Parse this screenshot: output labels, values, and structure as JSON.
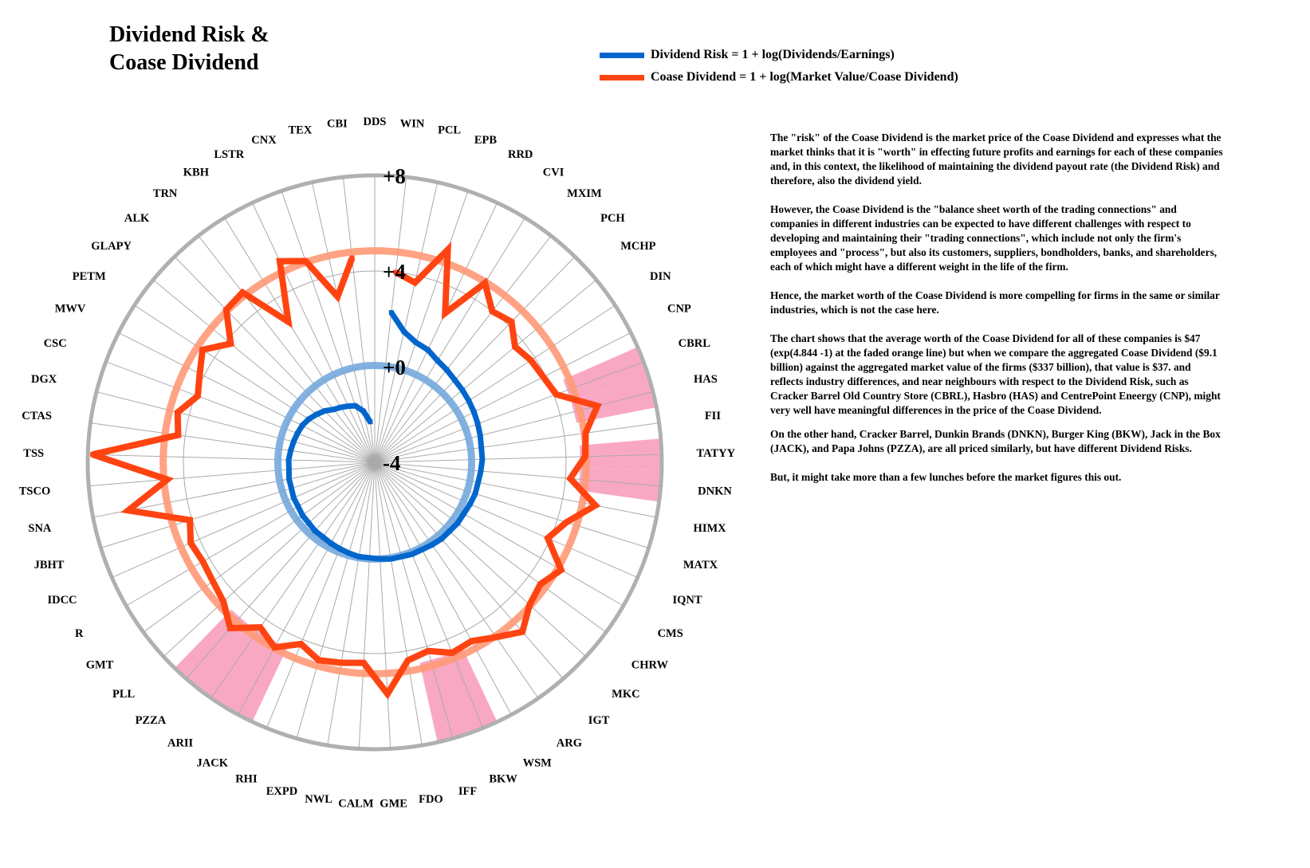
{
  "title": {
    "line1": "Dividend Risk &",
    "line2": "Coase Dividend"
  },
  "legend": [
    {
      "label": "Dividend Risk = 1 + log(Dividends/Earnings)",
      "color": "#0066CC"
    },
    {
      "label": "Coase Dividend = 1 + log(Market Value/Coase Dividend)",
      "color": "#FF4411"
    }
  ],
  "notes": [
    "The \"risk\" of the Coase Dividend is the market price of the Coase Dividend and expresses what the market thinks that it is \"worth\" in effecting future profits and earnings for each of these companies and, in this context, the likelihood of maintaining the dividend payout rate (the Dividend Risk) and therefore, also the dividend yield.",
    "However, the Coase Dividend is the \"balance sheet worth of the trading connections\" and companies in different industries can be expected to have different challenges with respect to developing and maintaining their \"trading connections\", which include not only the firm's employees and \"process\", but also its customers, suppliers, bondholders, banks, and shareholders, each of which might have a different weight in the life of the firm.",
    "Hence, the market worth of the Coase Dividend is more compelling for firms in the same or similar industries, which is not the case here.",
    "The chart shows that the average worth of the Coase Dividend for all of these companies is $47 (exp(4.844 -1) at the faded orange line) but when we compare the aggregated Coase Dividend ($9.1 billion) against the aggregated market value of the firms ($337 billion), that value is $37. and reflects industry differences, and near neighbours with respect to the Dividend Risk, such as Cracker Barrel Old Country Store (CBRL), Hasbro (HAS) and CentrePoint Eneergy (CNP), might very well have meaningful differences in the price of the Coase Dividend.",
    "On the other hand, Cracker Barrel, Dunkin Brands (DNKN), Burger King (BKW), Jack in the Box (JACK), and Papa Johns (PZZA), are all priced similarly, but have different Dividend Risks.",
    "But, it might take more than a few lunches before the market figures this out."
  ],
  "chart_data": {
    "type": "radar",
    "title": "Dividend Risk & Coase Dividend",
    "categories": [
      "DDS",
      "WIN",
      "PCL",
      "EPB",
      "RRD",
      "CVI",
      "MXIM",
      "PCH",
      "MCHP",
      "DIN",
      "CNP",
      "CBRL",
      "HAS",
      "FII",
      "TATYY",
      "DNKN",
      "HIMX",
      "MATX",
      "IQNT",
      "CMS",
      "CHRW",
      "MKC",
      "IGT",
      "ARG",
      "WSM",
      "BKW",
      "IFF",
      "FDO",
      "GME",
      "CALM",
      "NWL",
      "EXPD",
      "RHI",
      "JACK",
      "ARII",
      "PZZA",
      "PLL",
      "GMT",
      "R",
      "IDCC",
      "JBHT",
      "SNA",
      "TSCO",
      "TSS",
      "CTAS",
      "DGX",
      "CSC",
      "MWV",
      "PETM",
      "GLAPY",
      "ALK",
      "TRN",
      "KBH",
      "LSTR",
      "CNX",
      "TEX",
      "CBI"
    ],
    "radial_ticks": [
      {
        "value": -4,
        "label": "-4"
      },
      {
        "value": 0,
        "label": "+0"
      },
      {
        "value": 4,
        "label": "+4"
      },
      {
        "value": 8,
        "label": "+8"
      }
    ],
    "rlim": [
      -4,
      8
    ],
    "grid": true,
    "series": [
      {
        "name": "Dividend Risk = 1 + log(Dividends/Earnings)",
        "color": "#0066CC",
        "values": [
          null,
          2.3,
          1.6,
          1.3,
          1.2,
          1.0,
          0.9,
          0.8,
          0.75,
          0.7,
          0.65,
          0.6,
          0.55,
          0.5,
          0.5,
          0.45,
          0.4,
          0.4,
          0.35,
          0.3,
          0.3,
          0.25,
          0.25,
          0.2,
          0.15,
          0.15,
          0.1,
          0.1,
          0.05,
          0.0,
          0.0,
          -0.05,
          -0.1,
          -0.15,
          -0.2,
          -0.2,
          -0.25,
          -0.25,
          -0.3,
          -0.3,
          -0.35,
          -0.35,
          -0.4,
          -0.4,
          -0.45,
          -0.5,
          -0.55,
          -0.6,
          -0.7,
          -0.85,
          -1.0,
          -1.2,
          -1.3,
          -1.4,
          -1.5,
          -1.8,
          -2.3
        ]
      },
      {
        "name": "Coase Dividend = 1 + log(Market Value/Coase Dividend)",
        "color": "#FF4411",
        "values": [
          null,
          4.0,
          3.7,
          5.4,
          2.9,
          4.8,
          4.0,
          4.2,
          3.6,
          3.8,
          3.9,
          4.1,
          5.6,
          4.9,
          4.8,
          4.2,
          5.4,
          4.4,
          3.9,
          5.0,
          4.6,
          4.8,
          5.4,
          4.9,
          4.5,
          4.6,
          4.2,
          4.4,
          5.7,
          4.4,
          4.5,
          4.6,
          4.2,
          4.8,
          4.4,
          5.2,
          4.6,
          4.4,
          4.3,
          4.4,
          4.1,
          6.5,
          4.7,
          7.8,
          4.3,
          4.5,
          3.9,
          4.2,
          4.6,
          3.8,
          4.9,
          5.0,
          2.9,
          5.3,
          4.9,
          3.1,
          4.6
        ]
      }
    ],
    "reference_rings": [
      {
        "name": "Coase Dividend average",
        "value": 4.844,
        "color": "#FF9977"
      },
      {
        "name": "Dividend Risk average",
        "value": 0.05,
        "color": "#77AADD"
      }
    ],
    "highlighted_categories": [
      "CBRL",
      "HAS",
      "TATYY",
      "DNKN",
      "BKW",
      "IFF",
      "JACK",
      "ARII",
      "PZZA"
    ],
    "highlight_color": "#F9A8C4"
  }
}
